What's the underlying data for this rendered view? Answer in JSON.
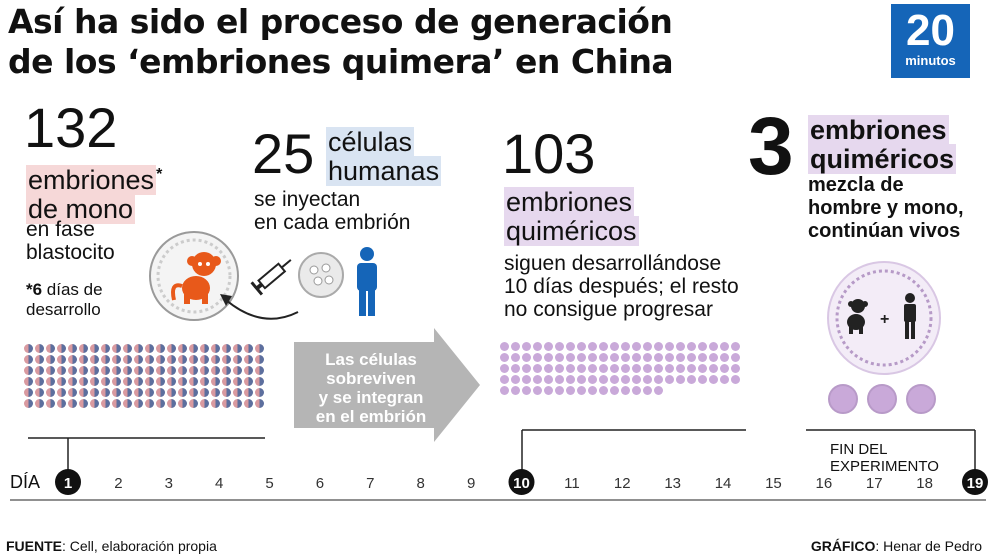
{
  "title": {
    "line1": "Así ha sido el proceso de generación",
    "line2": "de los ‘embriones quimera’ en China"
  },
  "logo": {
    "number": "20",
    "word": "minutos"
  },
  "stage1": {
    "number": "132",
    "label1": "embriones",
    "asterisk": "*",
    "label2": "de mono",
    "desc1": "en fase",
    "desc2": "blastocito",
    "note_mark": "*6",
    "note1": " días de",
    "note2": "desarrollo",
    "dot_count": 132
  },
  "stage2": {
    "number": "25",
    "label1": "células",
    "label2": "humanas",
    "desc1": "se inyectan",
    "desc2": "en cada embrión"
  },
  "arrow": {
    "line1": "Las células",
    "line2": "sobreviven",
    "line3": "y se integran",
    "line4": "en el embrión"
  },
  "stage3": {
    "number": "103",
    "label1": "embriones",
    "label2": "quiméricos",
    "desc1": "siguen desarrollándose",
    "desc2": "10 días después; el resto",
    "desc3": "no consigue progresar",
    "dot_count": 103
  },
  "stage4": {
    "number": "3",
    "label1": "embriones",
    "label2": "quiméricos",
    "desc1": "mezcla de",
    "desc2": "hombre y mono,",
    "desc3": "continúan vivos",
    "plus": "+",
    "dot_count": 3
  },
  "timeline": {
    "day_label": "DÍA",
    "days": [
      "1",
      "2",
      "3",
      "4",
      "5",
      "6",
      "7",
      "8",
      "9",
      "10",
      "11",
      "12",
      "13",
      "14",
      "15",
      "16",
      "17",
      "18",
      "19"
    ],
    "highlighted": [
      "1",
      "10",
      "19"
    ],
    "end_label": "FIN DEL EXPERIMENTO"
  },
  "footer": {
    "source_label": "FUENTE",
    "source_text": ": Cell, elaboración propia",
    "credit_label": "GRÁFICO",
    "credit_text": ": Henar de Pedro"
  },
  "colors": {
    "monkey": "#e8591a",
    "human": "#1565b8",
    "purple": "#c9a9d9",
    "arrow": "#b5b5b5",
    "logo": "#1565b8"
  }
}
